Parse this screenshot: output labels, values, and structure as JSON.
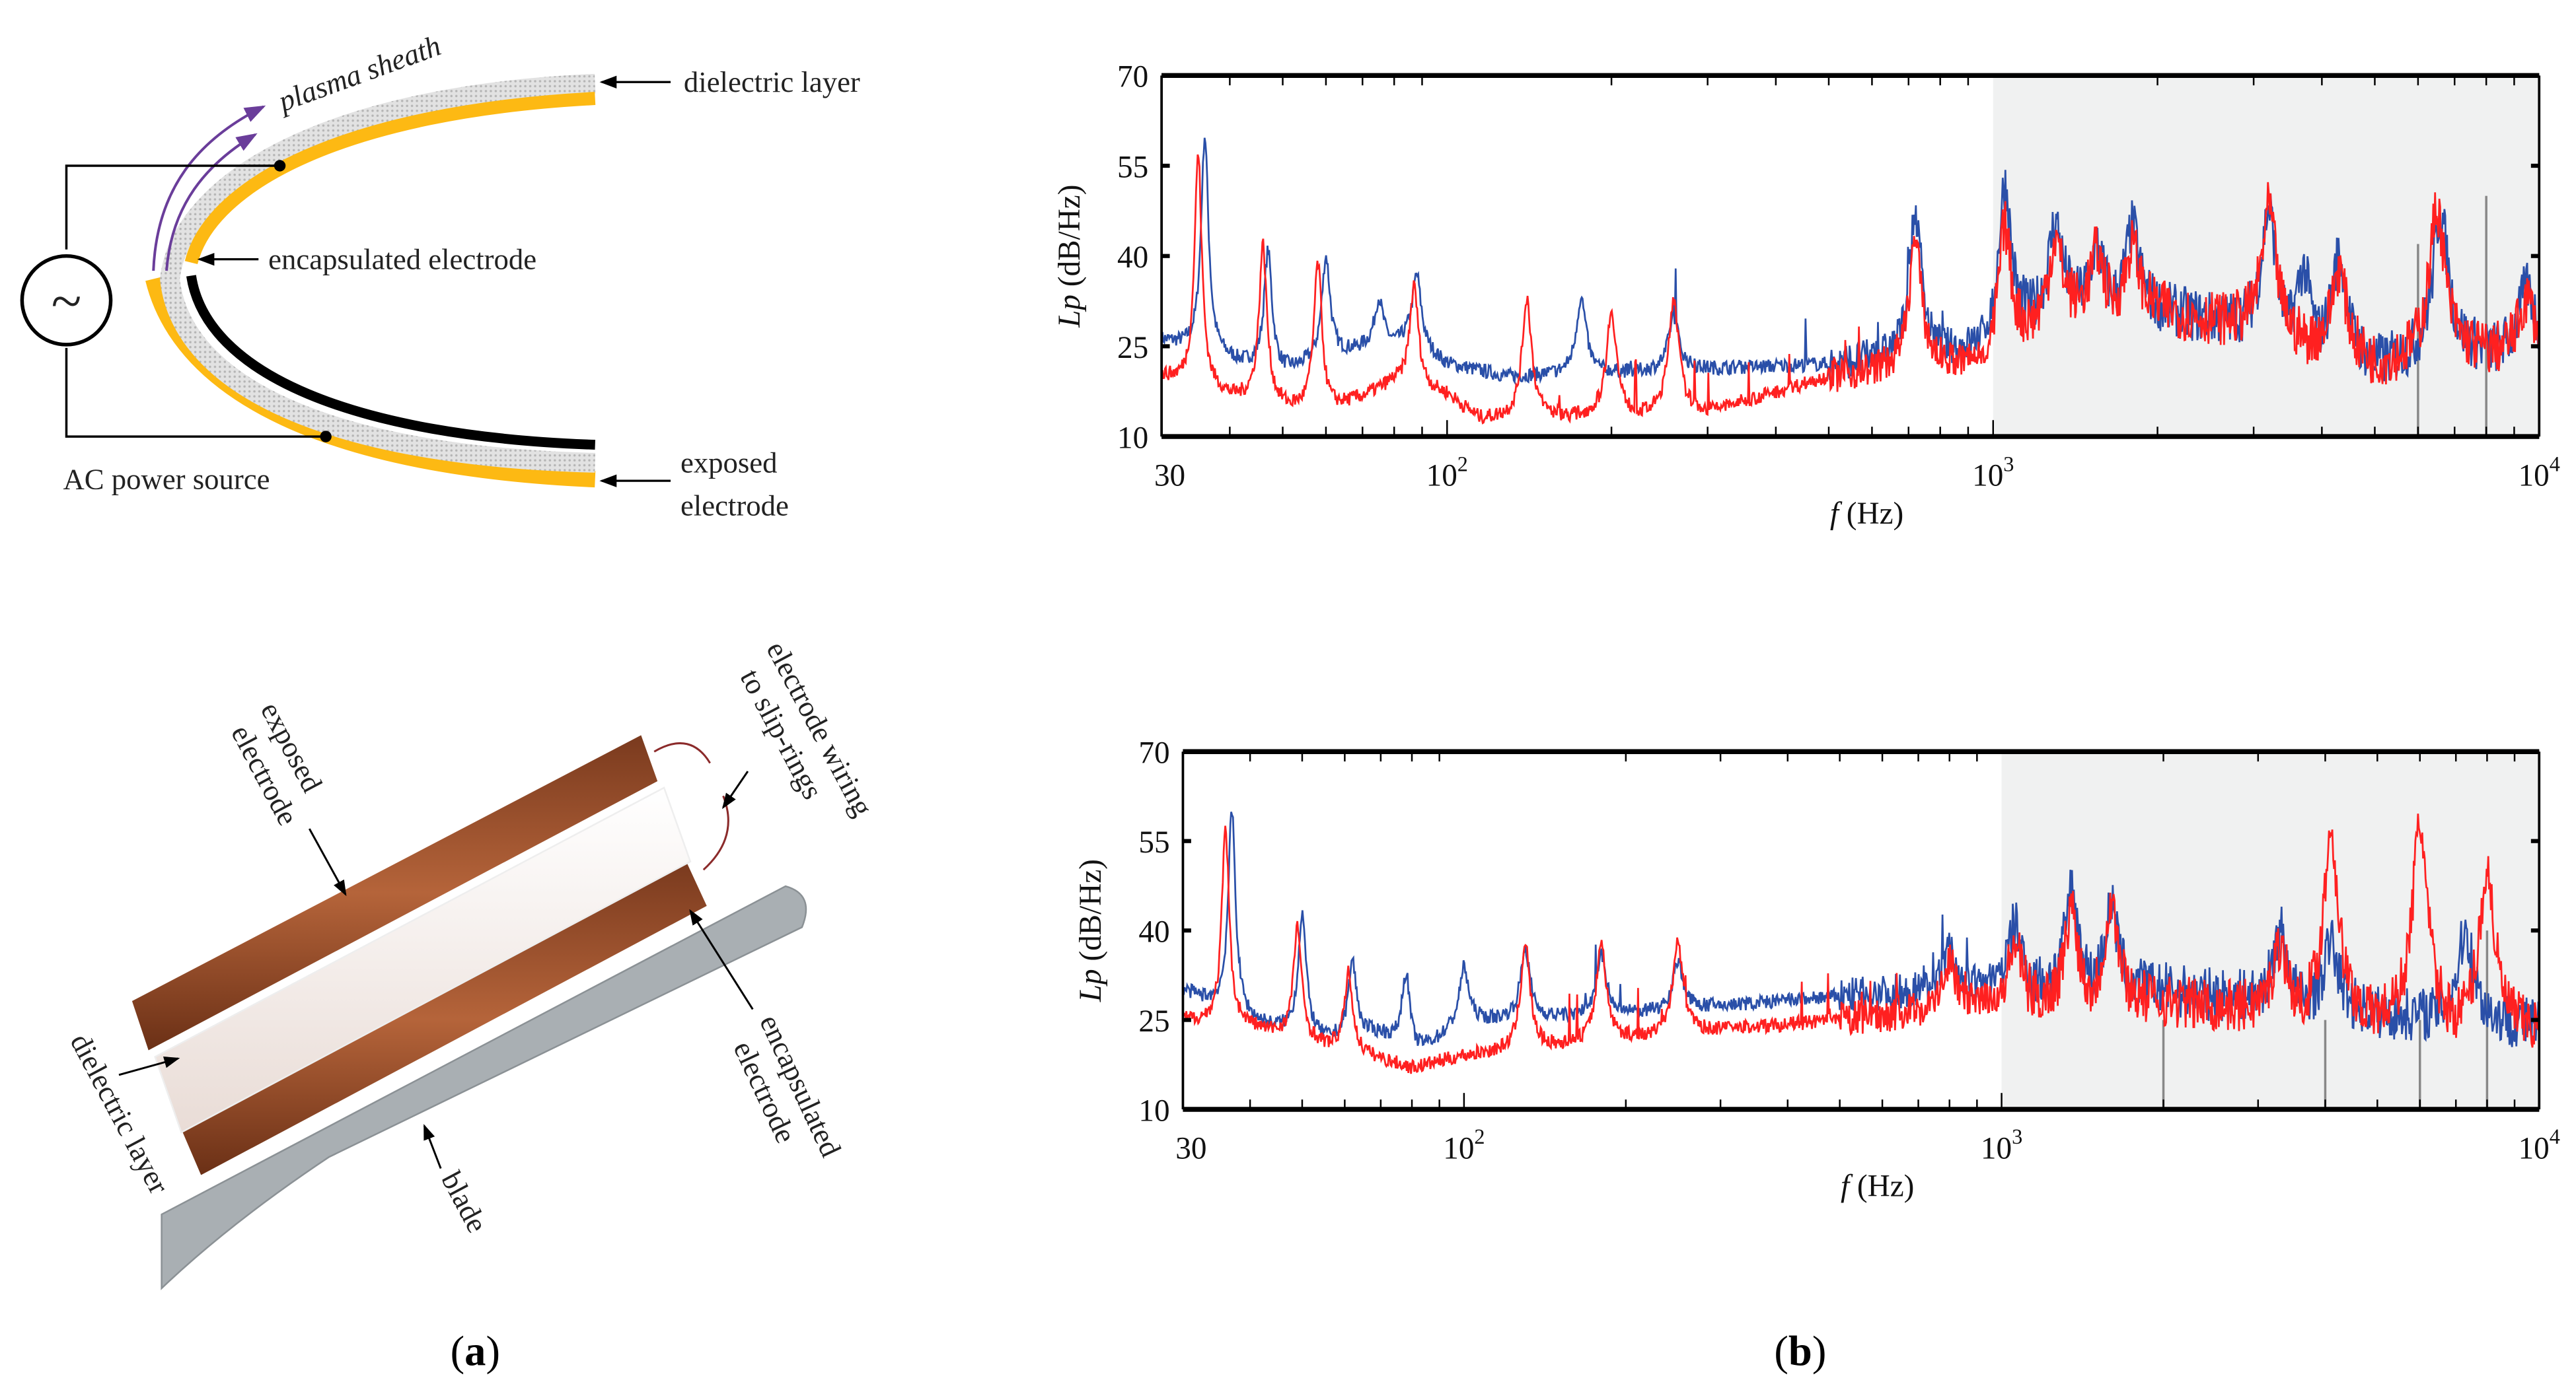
{
  "panel_a": {
    "caption_open": "(",
    "caption_letter": "a",
    "caption_close": ")",
    "top_diagram": {
      "plasma_sheath": "plasma sheath",
      "dielectric_layer": "dielectric layer",
      "encapsulated_electrode": "encapsulated electrode",
      "ac_power_source": "AC power source",
      "exposed_electrode_1": "exposed",
      "exposed_electrode_2": "electrode",
      "ac_symbol": "~"
    },
    "bottom_diagram": {
      "exposed_1": "exposed",
      "exposed_2": "electrode",
      "wiring_1": "electrode wiring",
      "wiring_2": "to slip-rings",
      "encapsulated_1": "encapsulated",
      "encapsulated_2": "electrode",
      "dielectric_layer": "dielectric layer",
      "blade": "blade"
    },
    "colors": {
      "electrode": "#FDB913",
      "dielectric": "#d6d6d6",
      "plasma": "#6a3d9a",
      "brown": "#a0522d",
      "blade": "#a9afb3"
    }
  },
  "panel_b": {
    "caption_open": "(",
    "caption_letter": "b",
    "caption_close": ")"
  },
  "chart_data": [
    {
      "type": "line",
      "title": "",
      "xlabel_var": "f",
      "xlabel_unit": "(Hz)",
      "ylabel_var": "Lp",
      "ylabel_unit": "(dB/Hz)",
      "xscale": "log",
      "xlim": [
        30,
        10000
      ],
      "ylim": [
        10,
        70
      ],
      "yticks": [
        "10",
        "25",
        "40",
        "55",
        "70"
      ],
      "xticks": [
        {
          "value": 30,
          "base": "30",
          "exp": ""
        },
        {
          "value": 100,
          "base": "10",
          "exp": "2"
        },
        {
          "value": 1000,
          "base": "10",
          "exp": "3"
        },
        {
          "value": 10000,
          "base": "10",
          "exp": "4"
        }
      ],
      "shaded_region": [
        1000,
        10000
      ],
      "vertical_markers": [
        {
          "f": 2000,
          "top": 10
        },
        {
          "f": 4000,
          "top": 10
        },
        {
          "f": 6000,
          "top": 42
        },
        {
          "f": 8000,
          "top": 50
        }
      ],
      "series": [
        {
          "name": "blue",
          "color": "#2a4fa8",
          "baseline": [
            [
              30,
              26
            ],
            [
              40,
              23
            ],
            [
              50,
              21
            ],
            [
              70,
              25
            ],
            [
              85,
              26
            ],
            [
              100,
              22
            ],
            [
              130,
              20
            ],
            [
              500,
              22
            ],
            [
              800,
              24
            ],
            [
              1000,
              25
            ],
            [
              1300,
              33
            ],
            [
              2000,
              31
            ],
            [
              3000,
              28
            ],
            [
              5000,
              22
            ],
            [
              7000,
              24
            ],
            [
              10000,
              24
            ]
          ],
          "peaks": [
            [
              36,
              60
            ],
            [
              47,
              41
            ],
            [
              60,
              40
            ],
            [
              75,
              33
            ],
            [
              88,
              37
            ],
            [
              176,
              33
            ],
            [
              260,
              30
            ],
            [
              720,
              47
            ],
            [
              1050,
              52
            ],
            [
              1300,
              46
            ],
            [
              1550,
              42
            ],
            [
              1800,
              45
            ],
            [
              3200,
              48
            ],
            [
              3700,
              38
            ],
            [
              4300,
              40
            ],
            [
              6600,
              47
            ],
            [
              9500,
              35
            ]
          ]
        },
        {
          "name": "red",
          "color": "#ff2020",
          "baseline": [
            [
              30,
              20
            ],
            [
              40,
              17
            ],
            [
              60,
              14
            ],
            [
              80,
              19
            ],
            [
              100,
              17
            ],
            [
              115,
              13
            ],
            [
              300,
              14
            ],
            [
              500,
              20
            ],
            [
              800,
              22
            ],
            [
              1000,
              22
            ],
            [
              1300,
              32
            ],
            [
              2000,
              31
            ],
            [
              3000,
              28
            ],
            [
              5000,
              22
            ],
            [
              7000,
              24
            ],
            [
              10000,
              24
            ]
          ],
          "peaks": [
            [
              35,
              57
            ],
            [
              46,
              42
            ],
            [
              58,
              39
            ],
            [
              87,
              35
            ],
            [
              140,
              33
            ],
            [
              200,
              31
            ],
            [
              260,
              33
            ],
            [
              720,
              43
            ],
            [
              1050,
              45
            ],
            [
              1300,
              43
            ],
            [
              1550,
              41
            ],
            [
              1800,
              42
            ],
            [
              3200,
              48
            ],
            [
              4300,
              38
            ],
            [
              6500,
              48
            ],
            [
              9500,
              33
            ]
          ]
        }
      ]
    },
    {
      "type": "line",
      "title": "",
      "xlabel_var": "f",
      "xlabel_unit": "(Hz)",
      "ylabel_var": "Lp",
      "ylabel_unit": "(dB/Hz)",
      "xscale": "log",
      "xlim": [
        30,
        10000
      ],
      "ylim": [
        10,
        70
      ],
      "yticks": [
        "10",
        "25",
        "40",
        "55",
        "70"
      ],
      "xticks": [
        {
          "value": 30,
          "base": "30",
          "exp": ""
        },
        {
          "value": 100,
          "base": "10",
          "exp": "2"
        },
        {
          "value": 1000,
          "base": "10",
          "exp": "3"
        },
        {
          "value": 10000,
          "base": "10",
          "exp": "4"
        }
      ],
      "shaded_region": [
        1000,
        10000
      ],
      "vertical_markers": [
        {
          "f": 2000,
          "top": 25
        },
        {
          "f": 4000,
          "top": 25
        },
        {
          "f": 6000,
          "top": 25
        },
        {
          "f": 8000,
          "top": 40
        }
      ],
      "series": [
        {
          "name": "blue",
          "color": "#2a4fa8",
          "baseline": [
            [
              30,
              30
            ],
            [
              40,
              25
            ],
            [
              55,
              22
            ],
            [
              70,
              23
            ],
            [
              80,
              19
            ],
            [
              100,
              25
            ],
            [
              200,
              26
            ],
            [
              500,
              29
            ],
            [
              1000,
              31
            ],
            [
              2000,
              30
            ],
            [
              5000,
              26
            ],
            [
              10000,
              24
            ]
          ],
          "peaks": [
            [
              37,
              60
            ],
            [
              50,
              43
            ],
            [
              62,
              35
            ],
            [
              78,
              33
            ],
            [
              100,
              34
            ],
            [
              130,
              37
            ],
            [
              180,
              36
            ],
            [
              250,
              35
            ],
            [
              800,
              37
            ],
            [
              1060,
              41
            ],
            [
              1350,
              47
            ],
            [
              1600,
              44
            ],
            [
              3300,
              40
            ],
            [
              4100,
              38
            ],
            [
              7300,
              40
            ]
          ]
        },
        {
          "name": "red",
          "color": "#ff2020",
          "baseline": [
            [
              30,
              25
            ],
            [
              40,
              24
            ],
            [
              55,
              21
            ],
            [
              80,
              17
            ],
            [
              100,
              19
            ],
            [
              200,
              22
            ],
            [
              500,
              25
            ],
            [
              1000,
              28
            ],
            [
              2000,
              28
            ],
            [
              5000,
              25
            ],
            [
              10000,
              23
            ]
          ],
          "peaks": [
            [
              36,
              57
            ],
            [
              49,
              41
            ],
            [
              61,
              33
            ],
            [
              130,
              38
            ],
            [
              180,
              38
            ],
            [
              250,
              38
            ],
            [
              800,
              35
            ],
            [
              1060,
              38
            ],
            [
              1350,
              44
            ],
            [
              1600,
              45
            ],
            [
              3300,
              38
            ],
            [
              4100,
              57
            ],
            [
              6000,
              58
            ],
            [
              8000,
              50
            ]
          ]
        }
      ]
    }
  ]
}
